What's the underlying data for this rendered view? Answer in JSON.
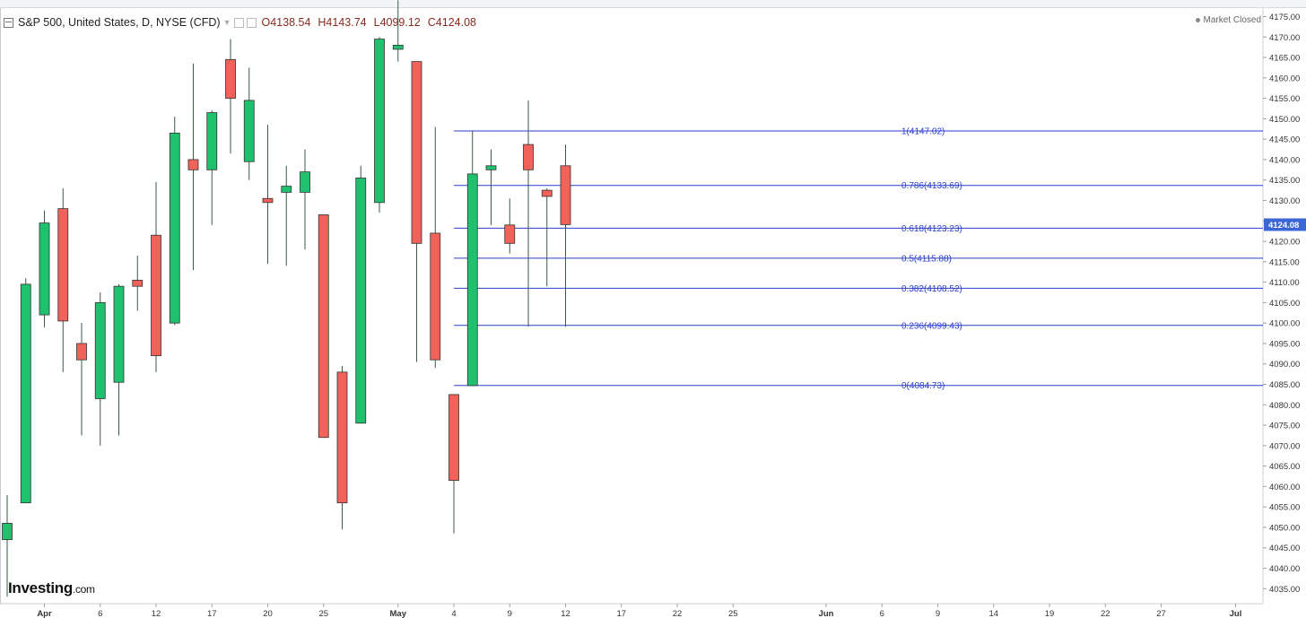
{
  "header": {
    "symbol": "S&P 500, United States, D, NYSE (CFD)",
    "open": "O4138.54",
    "high": "H4143.74",
    "low": "L4099.12",
    "close": "C4124.08"
  },
  "status": {
    "text": "Market Closed"
  },
  "logo": {
    "main": "Investing",
    "suffix": ".com"
  },
  "chart_data": {
    "type": "candlestick",
    "ylim": [
      4032,
      4178
    ],
    "y_ticks": [
      "4035.00",
      "4040.00",
      "4045.00",
      "4050.00",
      "4055.00",
      "4060.00",
      "4065.00",
      "4070.00",
      "4075.00",
      "4080.00",
      "4085.00",
      "4090.00",
      "4095.00",
      "4100.00",
      "4105.00",
      "4110.00",
      "4115.00",
      "4120.00",
      "4125.00",
      "4130.00",
      "4135.00",
      "4140.00",
      "4145.00",
      "4150.00",
      "4155.00",
      "4160.00",
      "4165.00",
      "4170.00",
      "4175.00"
    ],
    "x_ticks": [
      {
        "label": "Apr",
        "slot": 2
      },
      {
        "label": "6",
        "slot": 5
      },
      {
        "label": "12",
        "slot": 8
      },
      {
        "label": "17",
        "slot": 11
      },
      {
        "label": "20",
        "slot": 14
      },
      {
        "label": "25",
        "slot": 17
      },
      {
        "label": "May",
        "slot": 21
      },
      {
        "label": "4",
        "slot": 24
      },
      {
        "label": "9",
        "slot": 27
      },
      {
        "label": "12",
        "slot": 30
      },
      {
        "label": "17",
        "slot": 33
      },
      {
        "label": "22",
        "slot": 36
      },
      {
        "label": "25",
        "slot": 39
      },
      {
        "label": "Jun",
        "slot": 44
      },
      {
        "label": "6",
        "slot": 47
      },
      {
        "label": "9",
        "slot": 50
      },
      {
        "label": "14",
        "slot": 53
      },
      {
        "label": "19",
        "slot": 56
      },
      {
        "label": "22",
        "slot": 59
      },
      {
        "label": "27",
        "slot": 62
      },
      {
        "label": "Jul",
        "slot": 66
      }
    ],
    "candles": [
      {
        "o": 4047.0,
        "h": 4057.9,
        "l": 4033.0,
        "c": 4051.0
      },
      {
        "o": 4056.0,
        "h": 4111.0,
        "l": 4056.0,
        "c": 4109.5
      },
      {
        "o": 4102.0,
        "h": 4127.5,
        "l": 4099.0,
        "c": 4124.5
      },
      {
        "o": 4128.0,
        "h": 4133.0,
        "l": 4088.0,
        "c": 4100.5
      },
      {
        "o": 4095.0,
        "h": 4100.0,
        "l": 4072.5,
        "c": 4091.0
      },
      {
        "o": 4081.5,
        "h": 4107.5,
        "l": 4070.0,
        "c": 4105.0
      },
      {
        "o": 4085.5,
        "h": 4109.5,
        "l": 4072.5,
        "c": 4109.0
      },
      {
        "o": 4110.5,
        "h": 4116.5,
        "l": 4103.0,
        "c": 4109.0
      },
      {
        "o": 4121.5,
        "h": 4134.5,
        "l": 4088.0,
        "c": 4092.0
      },
      {
        "o": 4100.0,
        "h": 4150.5,
        "l": 4099.5,
        "c": 4146.5
      },
      {
        "o": 4140.0,
        "h": 4163.5,
        "l": 4113.0,
        "c": 4137.5
      },
      {
        "o": 4137.5,
        "h": 4152.0,
        "l": 4124.0,
        "c": 4151.5
      },
      {
        "o": 4164.5,
        "h": 4169.5,
        "l": 4141.5,
        "c": 4155.0
      },
      {
        "o": 4139.5,
        "h": 4162.5,
        "l": 4135.0,
        "c": 4154.5
      },
      {
        "o": 4130.5,
        "h": 4148.5,
        "l": 4114.5,
        "c": 4129.5
      },
      {
        "o": 4132.0,
        "h": 4138.5,
        "l": 4114.0,
        "c": 4133.5
      },
      {
        "o": 4132.0,
        "h": 4142.5,
        "l": 4118.0,
        "c": 4137.0
      },
      {
        "o": 4126.5,
        "h": 4126.5,
        "l": 4072.0,
        "c": 4072.0
      },
      {
        "o": 4088.0,
        "h": 4089.5,
        "l": 4049.5,
        "c": 4056.0
      },
      {
        "o": 4075.5,
        "h": 4138.5,
        "l": 4075.5,
        "c": 4135.5
      },
      {
        "o": 4129.5,
        "h": 4170.0,
        "l": 4127.0,
        "c": 4169.5
      },
      {
        "o": 4167.0,
        "h": 4179.0,
        "l": 4164.0,
        "c": 4168.0
      },
      {
        "o": 4164.0,
        "h": 4164.0,
        "l": 4090.5,
        "c": 4119.5
      },
      {
        "o": 4122.0,
        "h": 4148.0,
        "l": 4089.0,
        "c": 4091.0
      },
      {
        "o": 4082.5,
        "h": 4082.5,
        "l": 4048.5,
        "c": 4061.5
      },
      {
        "o": 4084.7,
        "h": 4147.0,
        "l": 4084.7,
        "c": 4136.5
      },
      {
        "o": 4137.5,
        "h": 4142.5,
        "l": 4124.0,
        "c": 4138.5
      },
      {
        "o": 4124.0,
        "h": 4130.5,
        "l": 4117.0,
        "c": 4119.5
      },
      {
        "o": 4143.7,
        "h": 4154.5,
        "l": 4099.1,
        "c": 4137.5
      },
      {
        "o": 4132.5,
        "h": 4133.0,
        "l": 4109.0,
        "c": 4131.0
      },
      {
        "o": 4138.5,
        "h": 4143.7,
        "l": 4099.1,
        "c": 4124.1
      }
    ],
    "current_price": "4124.08",
    "fibonacci": [
      {
        "label": "1(4147.02)",
        "value": 4147.02
      },
      {
        "label": "0.786(4133.69)",
        "value": 4133.69
      },
      {
        "label": "0.618(4123.23)",
        "value": 4123.23
      },
      {
        "label": "0.5(4115.88)",
        "value": 4115.88
      },
      {
        "label": "0.382(4108.52)",
        "value": 4108.52
      },
      {
        "label": "0.236(4099.43)",
        "value": 4099.43
      },
      {
        "label": "0(4084.73)",
        "value": 4084.73
      }
    ],
    "colors": {
      "up": "#1fc06e",
      "down": "#f0625a",
      "fib": "#2b3fcc",
      "price_tag": "#3a66d6"
    }
  }
}
